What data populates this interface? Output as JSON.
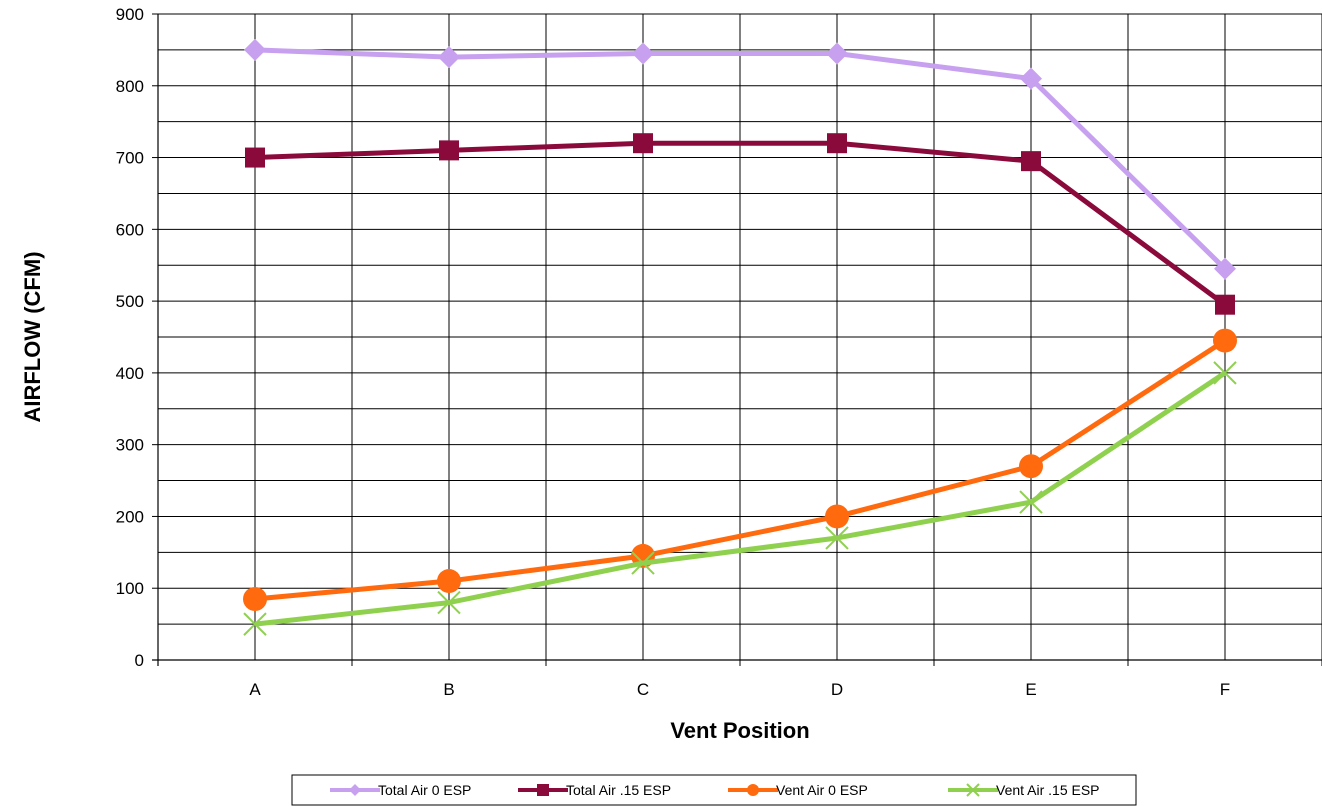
{
  "chart_data": {
    "type": "line",
    "title": "",
    "xlabel": "Vent Position",
    "ylabel": "AIRFLOW (CFM)",
    "categories": [
      "A",
      "B",
      "C",
      "D",
      "E",
      "F"
    ],
    "ylim": [
      0,
      900
    ],
    "yticks": [
      0,
      100,
      200,
      300,
      400,
      500,
      600,
      700,
      800,
      900
    ],
    "grid": true,
    "legend_position": "bottom",
    "series": [
      {
        "name": "Total Air 0 ESP",
        "values": [
          850,
          840,
          845,
          845,
          810,
          545
        ],
        "color": "#c8a0f0",
        "marker": "diamond"
      },
      {
        "name": "Total Air .15 ESP",
        "values": [
          700,
          710,
          720,
          720,
          695,
          495
        ],
        "color": "#8b0a3c",
        "marker": "square"
      },
      {
        "name": "Vent Air 0 ESP",
        "values": [
          85,
          110,
          145,
          200,
          270,
          445
        ],
        "color": "#ff6a0e",
        "marker": "circle"
      },
      {
        "name": "Vent Air .15 ESP",
        "values": [
          50,
          80,
          135,
          170,
          220,
          400
        ],
        "color": "#8fd14f",
        "marker": "x"
      }
    ]
  }
}
